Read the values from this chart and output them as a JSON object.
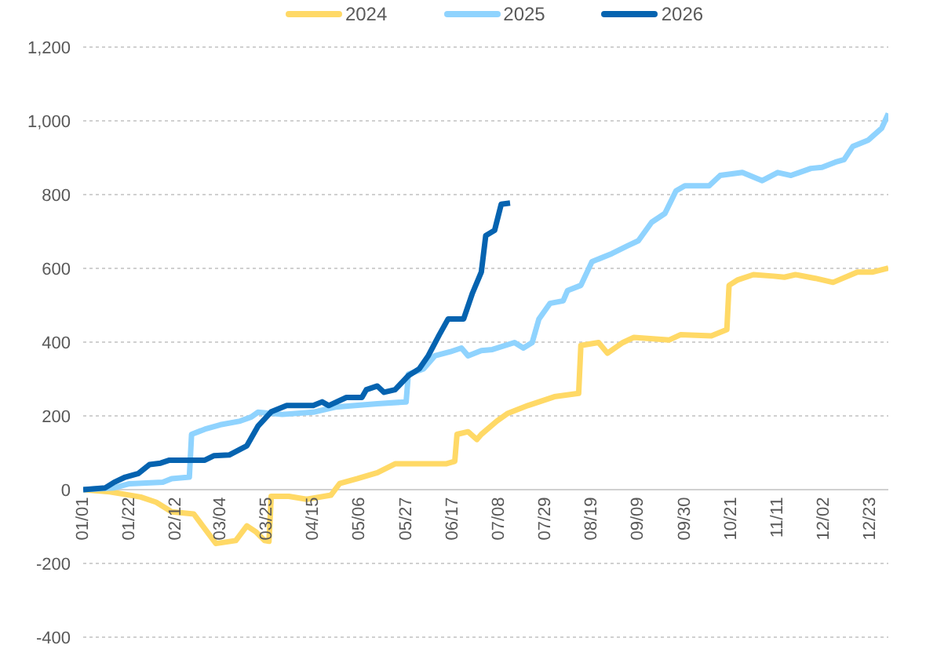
{
  "chart_data": {
    "type": "line",
    "xlim": [
      "--01-01",
      "--12-31"
    ],
    "xticks": [
      {
        "value": "--01-01",
        "label": "01/01"
      },
      {
        "value": "--01-22",
        "label": "01/22"
      },
      {
        "value": "--02-12",
        "label": "02/12"
      },
      {
        "value": "--03-04",
        "label": "03/04"
      },
      {
        "value": "--03-25",
        "label": "03/25"
      },
      {
        "value": "--04-15",
        "label": "04/15"
      },
      {
        "value": "--05-06",
        "label": "05/06"
      },
      {
        "value": "--05-27",
        "label": "05/27"
      },
      {
        "value": "--06-17",
        "label": "06/17"
      },
      {
        "value": "--07-08",
        "label": "07/08"
      },
      {
        "value": "--07-29",
        "label": "07/29"
      },
      {
        "value": "--08-19",
        "label": "08/19"
      },
      {
        "value": "--09-09",
        "label": "09/09"
      },
      {
        "value": "--09-30",
        "label": "09/30"
      },
      {
        "value": "--10-21",
        "label": "10/21"
      },
      {
        "value": "--11-11",
        "label": "11/11"
      },
      {
        "value": "--12-02",
        "label": "12/02"
      },
      {
        "value": "--12-23",
        "label": "12/23"
      }
    ],
    "ylim": [
      -400,
      1200
    ],
    "yticks": [
      {
        "value": -400,
        "label": "-400"
      },
      {
        "value": -200,
        "label": "-200"
      },
      {
        "value": 0,
        "label": "0"
      },
      {
        "value": 200,
        "label": "200"
      },
      {
        "value": 400,
        "label": "400"
      },
      {
        "value": 600,
        "label": "600"
      },
      {
        "value": 800,
        "label": "800"
      },
      {
        "value": 1000,
        "label": "1,000"
      },
      {
        "value": 1200,
        "label": "1,200"
      }
    ],
    "grid": "y",
    "legend": "top",
    "marker": "none",
    "line_style": "solid",
    "series": [
      {
        "name": "2024",
        "color": "#ffd966",
        "x": [
          "--01-01",
          "--01-13",
          "--01-27",
          "--02-03",
          "--02-10",
          "--02-20",
          "--02-24",
          "--03-02",
          "--03-11",
          "--03-16",
          "--03-20",
          "--03-24",
          "--03-26",
          "--03-27",
          "--04-04",
          "--04-12",
          "--04-23",
          "--04-27",
          "--05-05",
          "--05-14",
          "--05-22",
          "--06-04",
          "--06-14",
          "--06-18",
          "--06-19",
          "--06-24",
          "--06-28",
          "--06-30",
          "--07-07",
          "--07-12",
          "--07-21",
          "--08-02",
          "--08-13",
          "--08-14",
          "--08-22",
          "--08-26",
          "--09-02",
          "--09-07",
          "--09-23",
          "--09-28",
          "--10-12",
          "--10-19",
          "--10-20",
          "--10-24",
          "--10-31",
          "--11-09",
          "--11-14",
          "--11-19",
          "--11-28",
          "--12-06",
          "--12-17",
          "--12-24",
          "--12-31"
        ],
        "values": [
          0,
          -6,
          -20,
          -34,
          -60,
          -66,
          -98,
          -146,
          -138,
          -98,
          -114,
          -138,
          -140,
          -18,
          -18,
          -26,
          -15,
          17,
          30,
          46,
          70,
          70,
          70,
          77,
          150,
          157,
          136,
          150,
          186,
          207,
          228,
          252,
          261,
          391,
          399,
          370,
          399,
          413,
          406,
          420,
          417,
          434,
          554,
          569,
          583,
          579,
          576,
          583,
          573,
          562,
          590,
          590,
          601
        ]
      },
      {
        "name": "2025",
        "color": "#8fd3fe",
        "x": [
          "--01-01",
          "--01-15",
          "--01-22",
          "--02-06",
          "--02-10",
          "--02-18",
          "--02-19",
          "--02-25",
          "--03-04",
          "--03-13",
          "--03-18",
          "--03-21",
          "--04-01",
          "--04-15",
          "--04-25",
          "--05-04",
          "--05-14",
          "--05-27",
          "--05-28",
          "--06-04",
          "--06-09",
          "--06-16",
          "--06-21",
          "--06-24",
          "--06-30",
          "--07-05",
          "--07-15",
          "--07-19",
          "--07-23",
          "--07-26",
          "--07-31",
          "--08-06",
          "--08-08",
          "--08-14",
          "--08-19",
          "--08-28",
          "--09-04",
          "--09-09",
          "--09-15",
          "--09-21",
          "--09-26",
          "--09-30",
          "--10-11",
          "--10-16",
          "--10-26",
          "--11-04",
          "--11-11",
          "--11-17",
          "--11-26",
          "--12-01",
          "--12-07",
          "--12-11",
          "--12-15",
          "--12-22",
          "--12-28",
          "--12-31"
        ],
        "values": [
          0,
          5,
          16,
          20,
          30,
          34,
          150,
          164,
          176,
          186,
          197,
          210,
          204,
          210,
          224,
          228,
          233,
          238,
          313,
          328,
          363,
          374,
          384,
          363,
          377,
          380,
          399,
          384,
          399,
          462,
          505,
          512,
          540,
          554,
          618,
          640,
          661,
          675,
          725,
          749,
          810,
          824,
          824,
          852,
          860,
          838,
          860,
          852,
          871,
          874,
          888,
          895,
          931,
          948,
          980,
          1020
        ]
      },
      {
        "name": "2026",
        "color": "#0563b0",
        "x": [
          "--01-01",
          "--01-11",
          "--01-15",
          "--01-20",
          "--01-26",
          "--01-31",
          "--02-05",
          "--02-09",
          "--02-25",
          "--03-01",
          "--03-08",
          "--03-16",
          "--03-21",
          "--03-27",
          "--04-03",
          "--04-15",
          "--04-19",
          "--04-22",
          "--04-30",
          "--05-07",
          "--05-09",
          "--05-14",
          "--05-17",
          "--05-22",
          "--05-28",
          "--06-02",
          "--06-06",
          "--06-11",
          "--06-15",
          "--06-22",
          "--06-26",
          "--06-30",
          "--07-02",
          "--07-06",
          "--07-09",
          "--07-13"
        ],
        "values": [
          0,
          5,
          20,
          34,
          44,
          68,
          72,
          80,
          80,
          92,
          94,
          119,
          172,
          211,
          228,
          228,
          238,
          228,
          250,
          250,
          271,
          281,
          264,
          271,
          309,
          328,
          363,
          420,
          463,
          463,
          533,
          590,
          689,
          703,
          774,
          777
        ]
      }
    ]
  }
}
